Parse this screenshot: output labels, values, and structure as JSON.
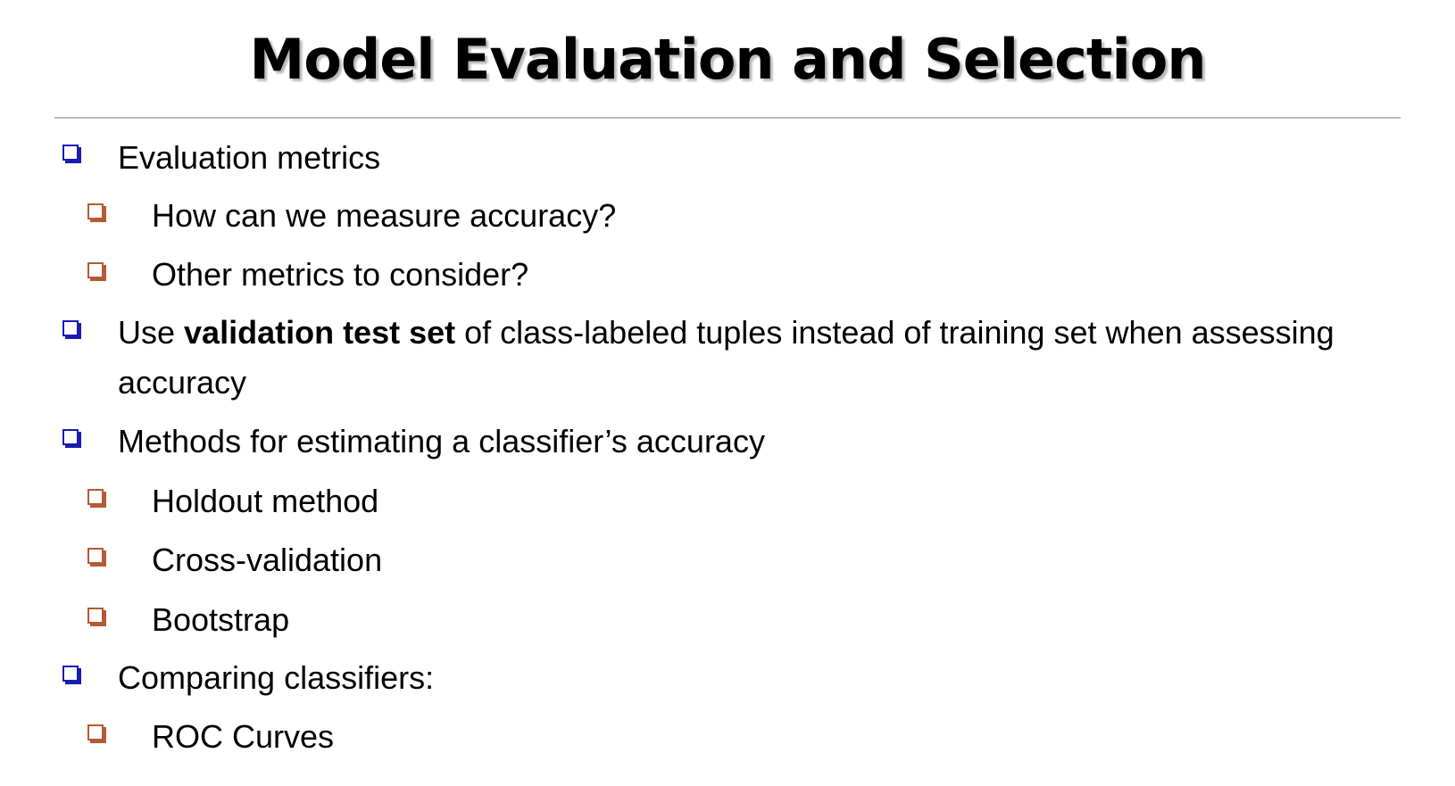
{
  "slide": {
    "title": "Model Evaluation and Selection",
    "items": [
      {
        "level": 1,
        "text": "Evaluation metrics"
      },
      {
        "level": 2,
        "text": "How can we measure accuracy?"
      },
      {
        "level": 2,
        "text": "Other metrics to consider?"
      },
      {
        "level": 1,
        "prefix": "Use ",
        "bold": "validation test set",
        "suffix_line1": " of class-labeled tuples instead of training set when assessing",
        "suffix_line2": "accuracy"
      },
      {
        "level": 1,
        "text": "Methods for estimating a classifier’s accuracy"
      },
      {
        "level": 2,
        "text": "Holdout method"
      },
      {
        "level": 2,
        "text": "Cross-validation"
      },
      {
        "level": 2,
        "text": "Bootstrap"
      },
      {
        "level": 1,
        "text": "Comparing classifiers:"
      },
      {
        "level": 2,
        "text": "ROC Curves"
      }
    ]
  },
  "colors": {
    "level1_bullet": "#1a1ab4",
    "level2_bullet": "#b35b33",
    "divider": "#b8b8b8"
  },
  "icons": {
    "level1_bullet": "hollow-square-bullet-icon",
    "level2_bullet": "hollow-square-bullet-icon"
  }
}
